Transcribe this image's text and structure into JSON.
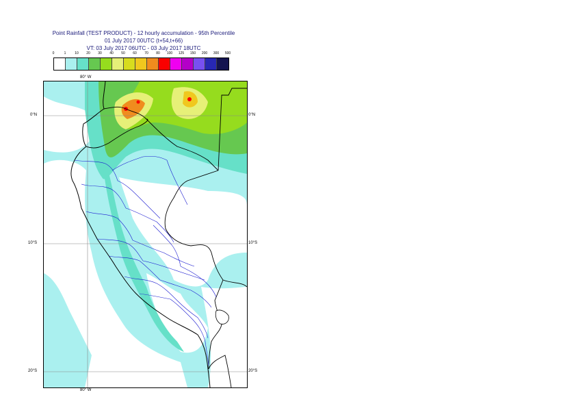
{
  "title": {
    "line1": "Point Rainfall (TEST PRODUCT) - 12 hourly accumulation - 95th Percentile",
    "line2": "01 July 2017 00UTC (t+54,t+66)",
    "line3": "VT: 03 July 2017 06UTC - 03 July 2017 18UTC"
  },
  "legend": {
    "ticks": [
      "0",
      "1",
      "10",
      "20",
      "30",
      "40",
      "50",
      "60",
      "70",
      "80",
      "100",
      "125",
      "150",
      "200",
      "300",
      "500"
    ],
    "colors": [
      "#ffffff",
      "#aaf0ef",
      "#66e0c8",
      "#66c850",
      "#96dc1e",
      "#e6f078",
      "#d7dc1e",
      "#f0c81e",
      "#f08c1e",
      "#fa0000",
      "#f000f0",
      "#b400c8",
      "#7850f0",
      "#2828b4",
      "#141450"
    ]
  },
  "map": {
    "lon_label_top": "80° W",
    "lon_label_bottom": "80° W",
    "lat_labels": {
      "eq_left": "0°N",
      "eq_right": "0°N",
      "s10_left": "10°S",
      "s10_right": "10°S",
      "s20_left": "20°S",
      "s20_right": "20°S"
    }
  }
}
